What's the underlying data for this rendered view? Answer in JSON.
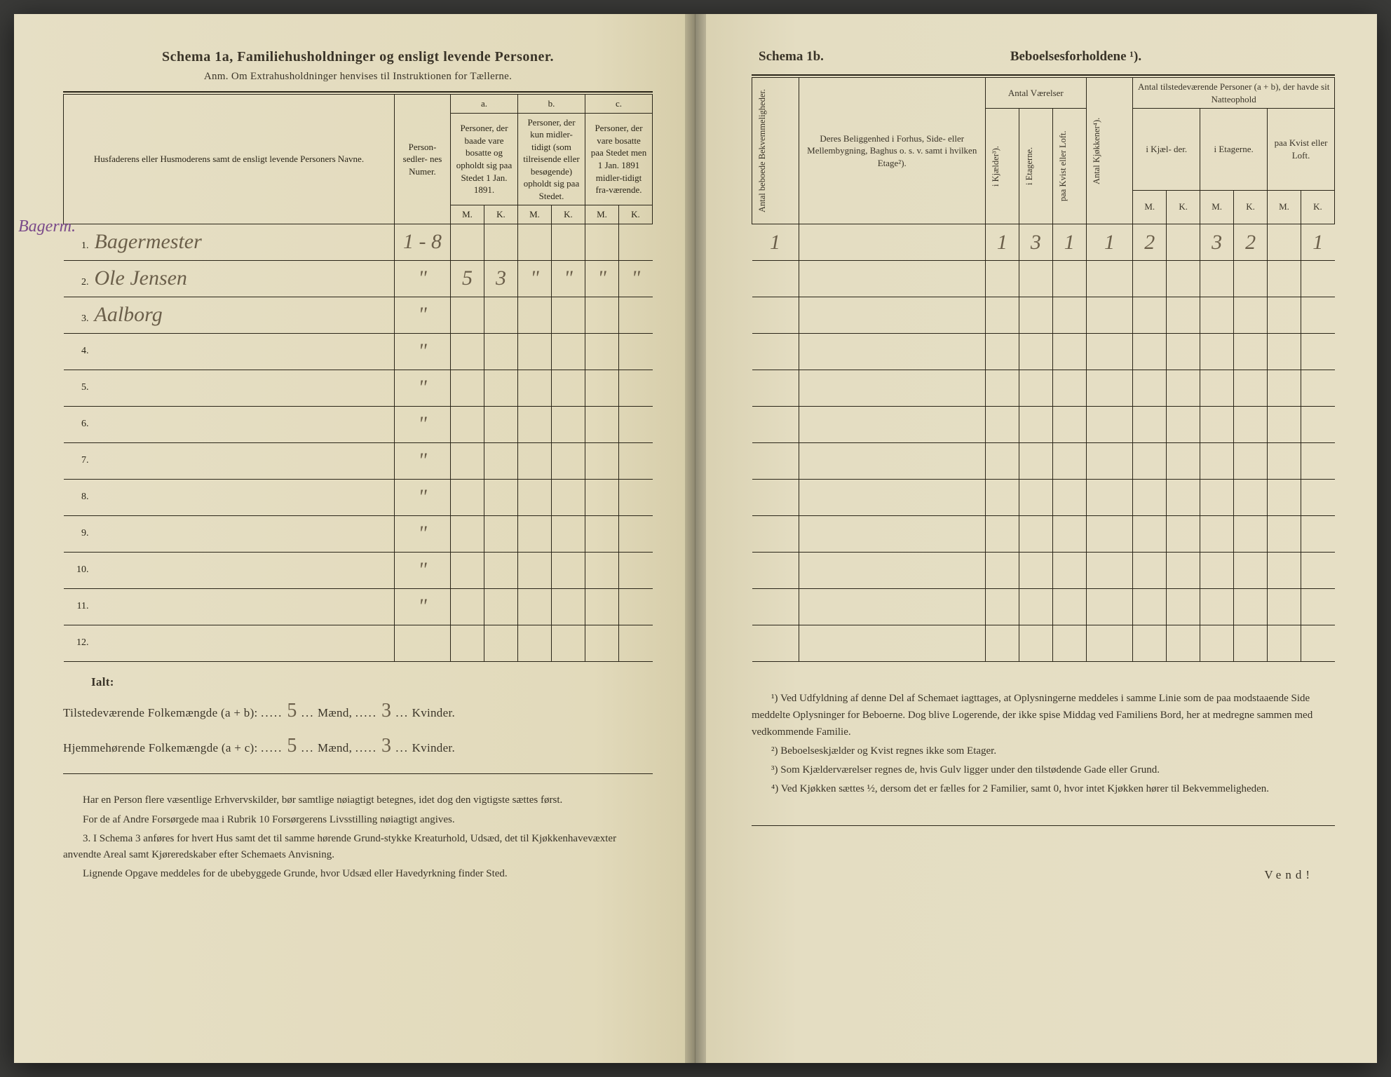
{
  "left": {
    "title": "Schema 1a,   Familiehusholdninger og ensligt levende Personer.",
    "subtitle": "Anm. Om Extrahusholdninger henvises til Instruktionen for Tællerne.",
    "headers": {
      "names": "Husfaderens eller Husmoderens samt de ensligt levende Personers Navne.",
      "person_num": "Person-\nsedler-\nnes\nNumer.",
      "col_a_top": "a.",
      "col_a": "Personer, der baade vare bosatte og opholdt sig paa Stedet 1 Jan. 1891.",
      "col_b_top": "b.",
      "col_b": "Personer, der kun midler-tidigt (som tilreisende eller besøgende) opholdt sig paa Stedet.",
      "col_c_top": "c.",
      "col_c": "Personer, der vare bosatte paa Stedet men 1 Jan. 1891 midler-tidigt fra-værende.",
      "M": "M.",
      "K": "K."
    },
    "margin_note": "Bagerm.",
    "rows": [
      {
        "n": "1.",
        "name_hw": "Bagermester",
        "pnum": "1 - 8",
        "aM": "",
        "aK": "",
        "bM": "",
        "bK": "",
        "cM": "",
        "cK": ""
      },
      {
        "n": "2.",
        "name_hw": "Ole Jensen",
        "pnum": "\"",
        "aM": "5",
        "aK": "3",
        "bM": "\"",
        "bK": "\"",
        "cM": "\"",
        "cK": "\""
      },
      {
        "n": "3.",
        "name_hw": "Aalborg",
        "pnum": "\"",
        "aM": "",
        "aK": "",
        "bM": "",
        "bK": "",
        "cM": "",
        "cK": ""
      },
      {
        "n": "4.",
        "name_hw": "",
        "pnum": "\"",
        "aM": "",
        "aK": "",
        "bM": "",
        "bK": "",
        "cM": "",
        "cK": ""
      },
      {
        "n": "5.",
        "name_hw": "",
        "pnum": "\"",
        "aM": "",
        "aK": "",
        "bM": "",
        "bK": "",
        "cM": "",
        "cK": ""
      },
      {
        "n": "6.",
        "name_hw": "",
        "pnum": "\"",
        "aM": "",
        "aK": "",
        "bM": "",
        "bK": "",
        "cM": "",
        "cK": ""
      },
      {
        "n": "7.",
        "name_hw": "",
        "pnum": "\"",
        "aM": "",
        "aK": "",
        "bM": "",
        "bK": "",
        "cM": "",
        "cK": ""
      },
      {
        "n": "8.",
        "name_hw": "",
        "pnum": "\"",
        "aM": "",
        "aK": "",
        "bM": "",
        "bK": "",
        "cM": "",
        "cK": ""
      },
      {
        "n": "9.",
        "name_hw": "",
        "pnum": "\"",
        "aM": "",
        "aK": "",
        "bM": "",
        "bK": "",
        "cM": "",
        "cK": ""
      },
      {
        "n": "10.",
        "name_hw": "",
        "pnum": "\"",
        "aM": "",
        "aK": "",
        "bM": "",
        "bK": "",
        "cM": "",
        "cK": ""
      },
      {
        "n": "11.",
        "name_hw": "",
        "pnum": "\"",
        "aM": "",
        "aK": "",
        "bM": "",
        "bK": "",
        "cM": "",
        "cK": ""
      },
      {
        "n": "12.",
        "name_hw": "",
        "pnum": "",
        "aM": "",
        "aK": "",
        "bM": "",
        "bK": "",
        "cM": "",
        "cK": ""
      }
    ],
    "ialt_label": "Ialt:",
    "line1_a": "Tilstedeværende Folkemængde (a + b): ",
    "line1_m": "5",
    "line1_mid": " Mænd, ",
    "line1_k": "3",
    "line1_end": " Kvinder.",
    "line2_a": "Hjemmehørende Folkemængde (a + c): ",
    "line2_m": "5",
    "line2_mid": " Mænd, ",
    "line2_k": "3",
    "line2_end": " Kvinder.",
    "foot": [
      "Har en Person flere væsentlige Erhvervskilder, bør samtlige nøiagtigt betegnes, idet dog den vigtigste sættes først.",
      "For de af Andre Forsørgede maa i Rubrik 10 Forsørgerens Livsstilling nøiagtigt angives.",
      "3. I Schema 3 anføres for hvert Hus samt det til samme hørende Grund-stykke Kreaturhold, Udsæd, det til Kjøkkenhavevæxter anvendte Areal samt Kjøreredskaber efter Schemaets Anvisning.",
      "Lignende Opgave meddeles for de ubebyggede Grunde, hvor Udsæd eller Havedyrkning finder Sted."
    ]
  },
  "right": {
    "title_left": "Schema 1b.",
    "title_right": "Beboelsesforholdene ¹).",
    "headers": {
      "antal_bebo": "Antal beboede\nBekvemmeligheder.",
      "belig": "Deres Beliggenhed i Forhus, Side- eller Mellembygning, Baghus o. s. v. samt i hvilken Etage²).",
      "antal_vaer": "Antal\nVærelser",
      "kjaelder": "i Kjælder³).",
      "etagerne": "i Etagerne.",
      "kvist": "paa Kvist eller\nLoft.",
      "kjokken": "Antal Kjøkkener⁴).",
      "tilstede": "Antal tilstedeværende Personer (a + b), der havde sit Natteophold",
      "i_kjael": "i Kjæl-\nder.",
      "i_etag": "i\nEtagerne.",
      "paa_kvist": "paa\nKvist\neller\nLoft.",
      "M": "M.",
      "K": "K."
    },
    "rows": [
      {
        "a": "1",
        "b": "",
        "c": "1",
        "d": "3",
        "e": "1",
        "f": "1",
        "g": "2",
        "h": "",
        "i": "3",
        "j": "2",
        "k": "",
        "l": "1"
      },
      {
        "a": "",
        "b": "",
        "c": "",
        "d": "",
        "e": "",
        "f": "",
        "g": "",
        "h": "",
        "i": "",
        "j": "",
        "k": "",
        "l": ""
      },
      {
        "a": "",
        "b": "",
        "c": "",
        "d": "",
        "e": "",
        "f": "",
        "g": "",
        "h": "",
        "i": "",
        "j": "",
        "k": "",
        "l": ""
      },
      {
        "a": "",
        "b": "",
        "c": "",
        "d": "",
        "e": "",
        "f": "",
        "g": "",
        "h": "",
        "i": "",
        "j": "",
        "k": "",
        "l": ""
      },
      {
        "a": "",
        "b": "",
        "c": "",
        "d": "",
        "e": "",
        "f": "",
        "g": "",
        "h": "",
        "i": "",
        "j": "",
        "k": "",
        "l": ""
      },
      {
        "a": "",
        "b": "",
        "c": "",
        "d": "",
        "e": "",
        "f": "",
        "g": "",
        "h": "",
        "i": "",
        "j": "",
        "k": "",
        "l": ""
      },
      {
        "a": "",
        "b": "",
        "c": "",
        "d": "",
        "e": "",
        "f": "",
        "g": "",
        "h": "",
        "i": "",
        "j": "",
        "k": "",
        "l": ""
      },
      {
        "a": "",
        "b": "",
        "c": "",
        "d": "",
        "e": "",
        "f": "",
        "g": "",
        "h": "",
        "i": "",
        "j": "",
        "k": "",
        "l": ""
      },
      {
        "a": "",
        "b": "",
        "c": "",
        "d": "",
        "e": "",
        "f": "",
        "g": "",
        "h": "",
        "i": "",
        "j": "",
        "k": "",
        "l": ""
      },
      {
        "a": "",
        "b": "",
        "c": "",
        "d": "",
        "e": "",
        "f": "",
        "g": "",
        "h": "",
        "i": "",
        "j": "",
        "k": "",
        "l": ""
      },
      {
        "a": "",
        "b": "",
        "c": "",
        "d": "",
        "e": "",
        "f": "",
        "g": "",
        "h": "",
        "i": "",
        "j": "",
        "k": "",
        "l": ""
      },
      {
        "a": "",
        "b": "",
        "c": "",
        "d": "",
        "e": "",
        "f": "",
        "g": "",
        "h": "",
        "i": "",
        "j": "",
        "k": "",
        "l": ""
      }
    ],
    "foot": [
      "¹) Ved Udfyldning af denne Del af Schemaet iagttages, at Oplysningerne meddeles i samme Linie som de paa modstaaende Side meddelte Oplysninger for Beboerne. Dog blive Logerende, der ikke spise Middag ved Familiens Bord, her at medregne sammen med vedkommende Familie.",
      "²) Beboelseskjælder og Kvist regnes ikke som Etager.",
      "³) Som Kjælderværelser regnes de, hvis Gulv ligger under den tilstødende Gade eller Grund.",
      "⁴) Ved Kjøkken sættes ½, dersom det er fælles for 2 Familier, samt 0, hvor intet Kjøkken hører til Bekvemmeligheden."
    ],
    "vend": "Vend!"
  }
}
